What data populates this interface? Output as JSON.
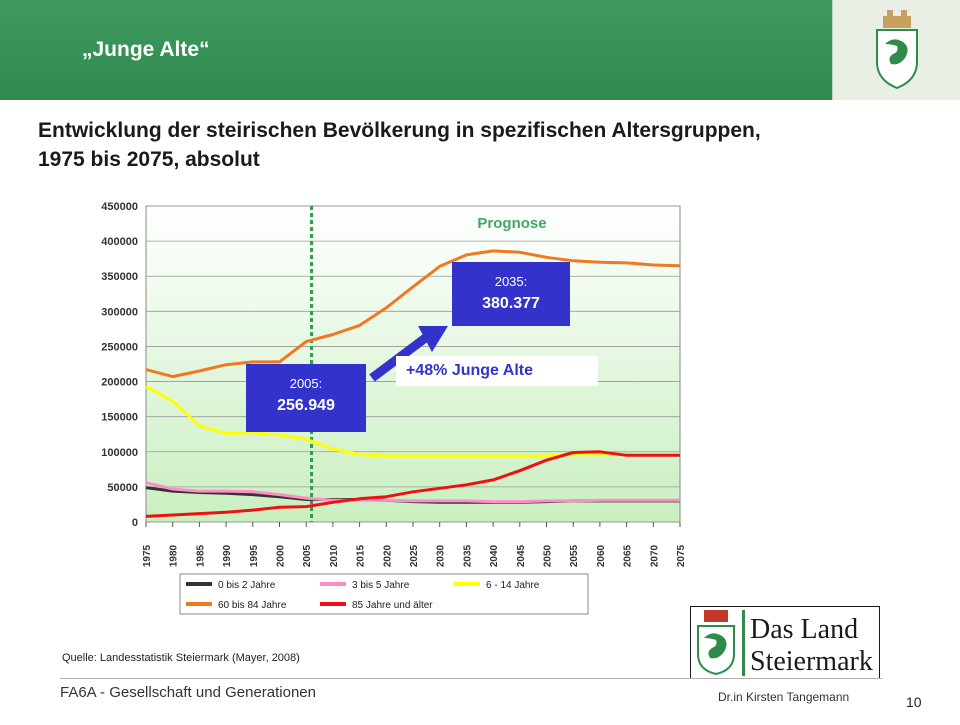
{
  "header": {
    "title": "„Junge Alte“"
  },
  "slide": {
    "title_line1": "Entwicklung der steirischen Bevölkerung in spezifischen Altersgruppen,",
    "title_line2": "1975 bis 2075, absolut"
  },
  "callouts": {
    "left": {
      "year": "2005:",
      "value": "256.949"
    },
    "right": {
      "year": "2035:",
      "value": "380.377"
    },
    "growth": "+48% Junge Alte"
  },
  "source": "Quelle: Landesstatistik Steiermark (Mayer, 2008)",
  "footer": {
    "left": "FA6A - Gesellschaft und Generationen",
    "author": "Dr.in Kirsten Tangemann",
    "page": "10"
  },
  "logo": {
    "line1": "Das Land",
    "line2": "Steiermark"
  },
  "chart_data": {
    "type": "line",
    "annotation": "Prognose",
    "ylim": [
      0,
      450000
    ],
    "yticks": [
      0,
      50000,
      100000,
      150000,
      200000,
      250000,
      300000,
      350000,
      400000,
      450000
    ],
    "ytick_labels": [
      "0",
      "50000",
      "100000",
      "150000",
      "200000",
      "250000",
      "300000",
      "350000",
      "400000",
      "450000"
    ],
    "xlim": [
      1975,
      2075
    ],
    "xticks": [
      1975,
      1980,
      1985,
      1990,
      1995,
      2000,
      2005,
      2010,
      2015,
      2020,
      2025,
      2030,
      2035,
      2040,
      2045,
      2050,
      2055,
      2060,
      2065,
      2070,
      2075
    ],
    "forecast_start": 2006,
    "legend_position": "bottom",
    "grid": true,
    "colors": {
      "plot_top": "#ffffff",
      "plot_bottom": "#c9efc0",
      "forecast_line": "#2e9e4a",
      "annotation_text": "#3fa866"
    },
    "series": [
      {
        "name": "0 bis 2 Jahre",
        "color": "#333333",
        "x": [
          1975,
          1980,
          1985,
          1990,
          1995,
          2000,
          2005,
          2010,
          2015,
          2020,
          2025,
          2030,
          2035,
          2040,
          2045,
          2050,
          2055,
          2060,
          2065,
          2070,
          2075
        ],
        "y": [
          49000,
          44000,
          42000,
          41000,
          39000,
          36000,
          32000,
          32000,
          32000,
          31000,
          29000,
          28000,
          28000,
          28000,
          28000,
          29000,
          30000,
          30000,
          30000,
          30000,
          30000
        ]
      },
      {
        "name": "3 bis 5 Jahre",
        "color": "#ff8ec8",
        "x": [
          1975,
          1980,
          1985,
          1990,
          1995,
          2000,
          2005,
          2010,
          2015,
          2020,
          2025,
          2030,
          2035,
          2040,
          2045,
          2050,
          2055,
          2060,
          2065,
          2070,
          2075
        ],
        "y": [
          56000,
          47000,
          44000,
          44000,
          43000,
          39000,
          34000,
          31000,
          31000,
          31000,
          30000,
          30000,
          30000,
          29000,
          29000,
          30000,
          30000,
          31000,
          31000,
          31000,
          31000
        ]
      },
      {
        "name": "6 - 14 Jahre",
        "color": "#ffff00",
        "x": [
          1975,
          1980,
          1985,
          1990,
          1995,
          2000,
          2005,
          2010,
          2015,
          2020,
          2025,
          2030,
          2035,
          2040,
          2045,
          2050,
          2055,
          2060,
          2065,
          2070,
          2075
        ],
        "y": [
          193000,
          172000,
          137000,
          126000,
          127000,
          124000,
          118000,
          104000,
          96000,
          94000,
          94000,
          94000,
          94000,
          94000,
          94000,
          94000,
          96000,
          96000,
          96000,
          96000,
          96000
        ]
      },
      {
        "name": "60 bis 84 Jahre",
        "color": "#f07820",
        "x": [
          1975,
          1980,
          1985,
          1990,
          1995,
          2000,
          2005,
          2010,
          2015,
          2020,
          2025,
          2030,
          2035,
          2040,
          2045,
          2050,
          2055,
          2060,
          2065,
          2070,
          2075
        ],
        "y": [
          217000,
          207000,
          215000,
          224000,
          228000,
          228000,
          256949,
          267000,
          280000,
          305000,
          335000,
          364000,
          380377,
          386000,
          384000,
          377000,
          372000,
          370000,
          369000,
          366000,
          365000
        ]
      },
      {
        "name": "85 Jahre und älter",
        "color": "#ee1111",
        "x": [
          1975,
          1980,
          1985,
          1990,
          1995,
          2000,
          2005,
          2010,
          2015,
          2020,
          2025,
          2030,
          2035,
          2040,
          2045,
          2050,
          2055,
          2060,
          2065,
          2070,
          2075
        ],
        "y": [
          8000,
          10000,
          12000,
          14000,
          17000,
          21000,
          22000,
          28000,
          33000,
          36000,
          43000,
          48000,
          53000,
          60000,
          73000,
          88000,
          99000,
          100000,
          95000,
          95000,
          95000
        ]
      }
    ]
  }
}
